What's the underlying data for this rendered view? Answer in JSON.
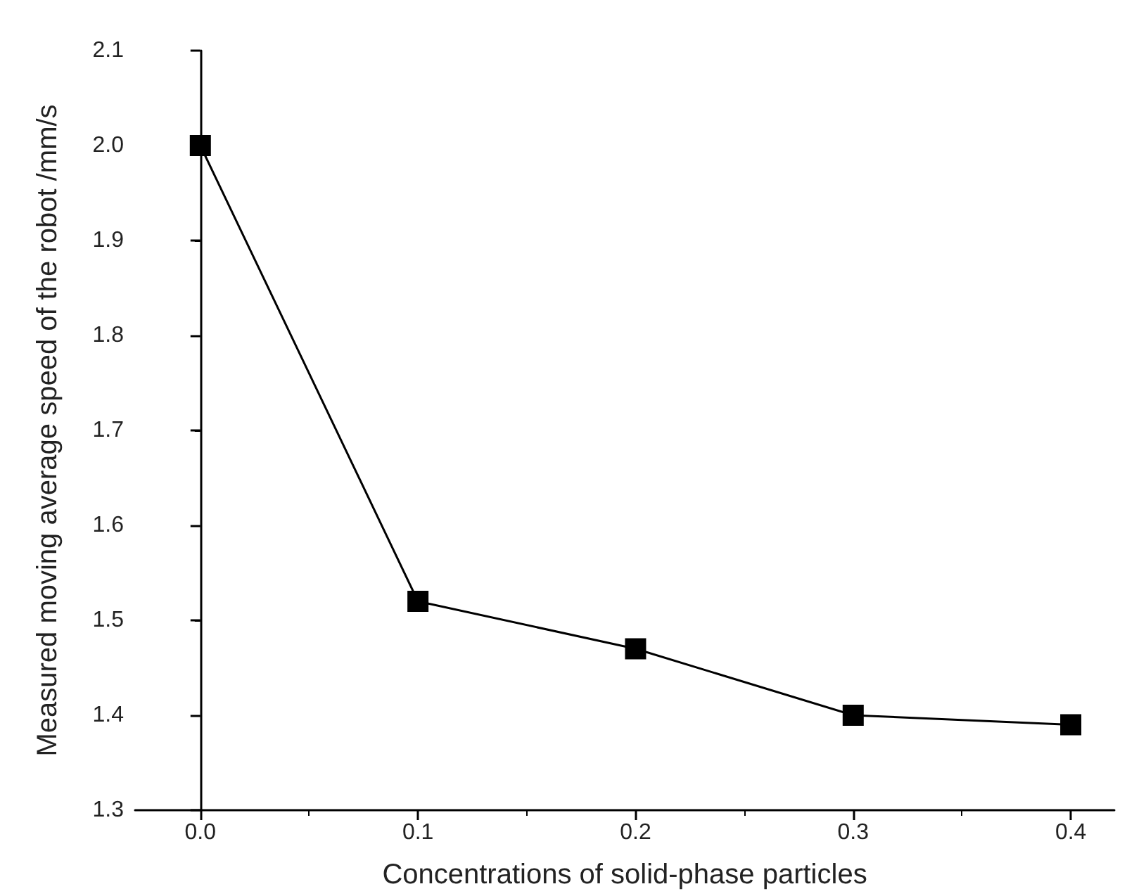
{
  "chart_data": {
    "type": "line",
    "xlabel": "Concentrations of solid-phase particles",
    "ylabel": "Measured moving average speed of the robot /mm/s",
    "x": [
      0,
      0.1,
      0.2,
      0.3,
      0.4
    ],
    "series": [
      {
        "color": "#000000",
        "values": [
          2.0,
          1.52,
          1.47,
          1.4,
          1.39
        ]
      }
    ],
    "xlim": [
      -0.03,
      0.42
    ],
    "xticks": [
      {
        "value": 0,
        "label": "0.0"
      },
      {
        "value": 0.1,
        "label": "0.1"
      },
      {
        "value": 0.2,
        "label": "0.2"
      },
      {
        "value": 0.3,
        "label": "0.3"
      },
      {
        "value": 0.4,
        "label": "0.4"
      }
    ],
    "ylim": [
      1.3,
      2.1
    ],
    "yticks": [
      {
        "value": 1.3,
        "label": "1.3"
      },
      {
        "value": 1.4,
        "label": "1.4"
      },
      {
        "value": 1.5,
        "label": "1.5"
      },
      {
        "value": 1.6,
        "label": "1.6"
      },
      {
        "value": 1.7,
        "label": "1.7"
      },
      {
        "value": 1.8,
        "label": "1.8"
      },
      {
        "value": 1.9,
        "label": "1.9"
      },
      {
        "value": 2.0,
        "label": "2.0"
      },
      {
        "value": 2.1,
        "label": "2.1"
      }
    ],
    "marker": "square",
    "line_style": "solid"
  }
}
